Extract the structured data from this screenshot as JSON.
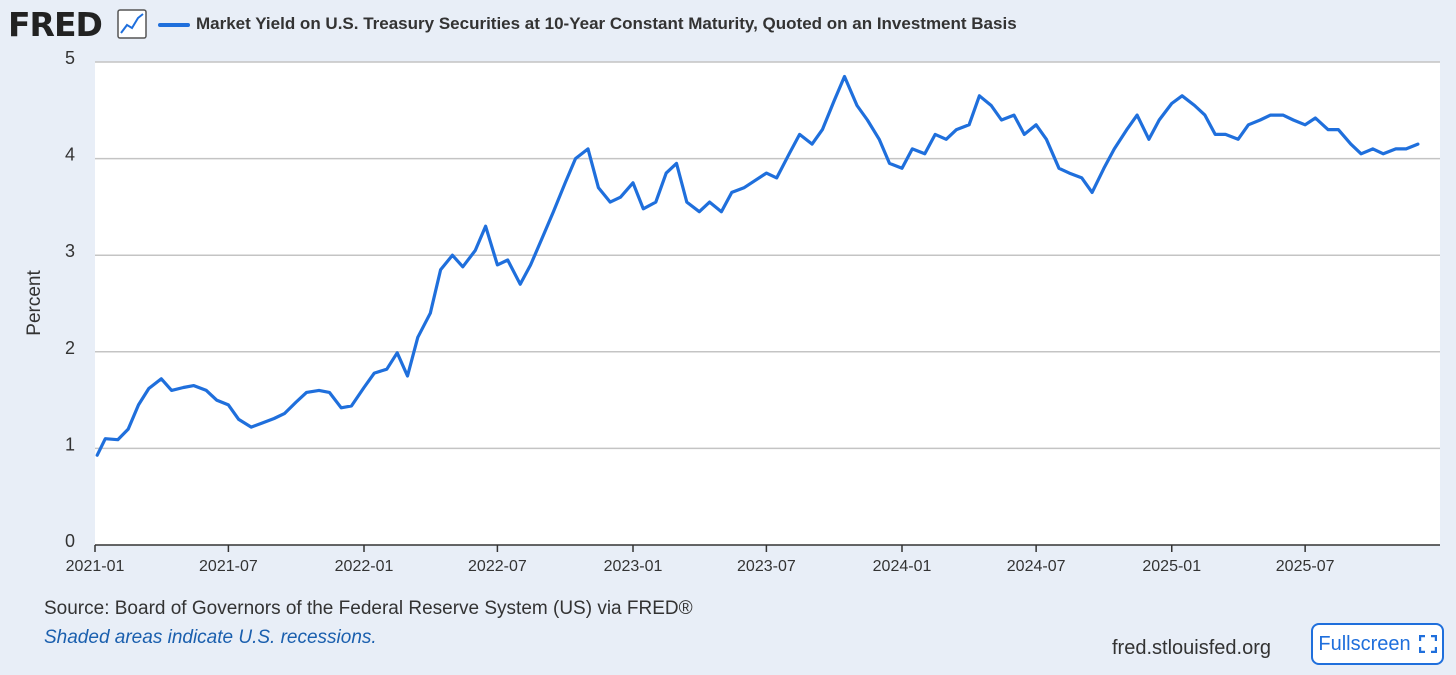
{
  "header": {
    "logo": "FRED",
    "logo_icon": "line-chart-icon",
    "title": "Market Yield on U.S. Treasury Securities at 10-Year Constant Maturity, Quoted on an Investment Basis"
  },
  "footer": {
    "source": "Source: Board of Governors of the Federal Reserve System (US) via FRED®",
    "note": "Shaded areas indicate U.S. recessions.",
    "site": "fred.stlouisfed.org",
    "fullscreen_label": "Fullscreen",
    "fullscreen_icon": "expand-icon"
  },
  "colors": {
    "series": "#1f6fdc",
    "background": "#e8eef7",
    "plot": "#ffffff",
    "grid": "#c4c4c4",
    "link": "#1a5fae"
  },
  "chart_data": {
    "type": "line",
    "title": "Market Yield on U.S. Treasury Securities at 10-Year Constant Maturity, Quoted on an Investment Basis",
    "xlabel": "",
    "ylabel": "Percent",
    "ylim": [
      0,
      5
    ],
    "yticks": [
      "0",
      "1",
      "2",
      "3",
      "4",
      "5"
    ],
    "xticks": [
      "2021-01",
      "2021-07",
      "2022-01",
      "2022-07",
      "2023-01",
      "2023-07",
      "2024-01",
      "2024-07",
      "2025-01",
      "2025-07"
    ],
    "grid": true,
    "series": [
      {
        "name": "Market Yield on U.S. Treasury Securities at 10-Year Constant Maturity, Quoted on an Investment Basis",
        "x": [
          "2021-01-04",
          "2021-01-15",
          "2021-02-01",
          "2021-02-15",
          "2021-03-01",
          "2021-03-15",
          "2021-04-01",
          "2021-04-15",
          "2021-05-01",
          "2021-05-15",
          "2021-06-01",
          "2021-06-15",
          "2021-07-01",
          "2021-07-15",
          "2021-08-01",
          "2021-08-15",
          "2021-09-01",
          "2021-09-15",
          "2021-10-01",
          "2021-10-15",
          "2021-11-01",
          "2021-11-15",
          "2021-12-01",
          "2021-12-15",
          "2022-01-01",
          "2022-01-15",
          "2022-02-01",
          "2022-02-15",
          "2022-03-01",
          "2022-03-15",
          "2022-04-01",
          "2022-04-15",
          "2022-05-01",
          "2022-05-15",
          "2022-06-01",
          "2022-06-15",
          "2022-07-01",
          "2022-07-15",
          "2022-08-01",
          "2022-08-15",
          "2022-09-01",
          "2022-09-15",
          "2022-10-01",
          "2022-10-15",
          "2022-11-01",
          "2022-11-15",
          "2022-12-01",
          "2022-12-15",
          "2023-01-01",
          "2023-01-15",
          "2023-02-01",
          "2023-02-15",
          "2023-03-01",
          "2023-03-15",
          "2023-04-01",
          "2023-04-15",
          "2023-05-01",
          "2023-05-15",
          "2023-06-01",
          "2023-06-15",
          "2023-07-01",
          "2023-07-15",
          "2023-08-01",
          "2023-08-15",
          "2023-09-01",
          "2023-09-15",
          "2023-10-01",
          "2023-10-15",
          "2023-11-01",
          "2023-11-15",
          "2023-12-01",
          "2023-12-15",
          "2024-01-01",
          "2024-01-15",
          "2024-02-01",
          "2024-02-15",
          "2024-03-01",
          "2024-03-15",
          "2024-04-01",
          "2024-04-15",
          "2024-05-01",
          "2024-05-15",
          "2024-06-01",
          "2024-06-15",
          "2024-07-01",
          "2024-07-15",
          "2024-08-01",
          "2024-08-15",
          "2024-09-01",
          "2024-09-15",
          "2024-10-01",
          "2024-10-15",
          "2024-11-01",
          "2024-11-15",
          "2024-12-01",
          "2024-12-15",
          "2025-01-01",
          "2025-01-15",
          "2025-02-01",
          "2025-02-15",
          "2025-03-01",
          "2025-03-15",
          "2025-04-01",
          "2025-04-15",
          "2025-05-01",
          "2025-05-15",
          "2025-06-01",
          "2025-06-15",
          "2025-07-01",
          "2025-07-15",
          "2025-08-01",
          "2025-08-15",
          "2025-09-01",
          "2025-09-15",
          "2025-10-01",
          "2025-10-15",
          "2025-11-01",
          "2025-11-15",
          "2025-12-01"
        ],
        "y": [
          0.93,
          1.1,
          1.09,
          1.2,
          1.45,
          1.62,
          1.72,
          1.6,
          1.63,
          1.65,
          1.6,
          1.5,
          1.45,
          1.3,
          1.22,
          1.26,
          1.31,
          1.36,
          1.48,
          1.58,
          1.6,
          1.58,
          1.42,
          1.44,
          1.63,
          1.78,
          1.82,
          1.99,
          1.75,
          2.15,
          2.4,
          2.85,
          3.0,
          2.88,
          3.05,
          3.3,
          2.9,
          2.95,
          2.7,
          2.9,
          3.2,
          3.45,
          3.75,
          4.0,
          4.1,
          3.7,
          3.55,
          3.6,
          3.75,
          3.48,
          3.55,
          3.85,
          3.95,
          3.55,
          3.45,
          3.55,
          3.45,
          3.65,
          3.7,
          3.77,
          3.85,
          3.8,
          4.05,
          4.25,
          4.15,
          4.3,
          4.6,
          4.85,
          4.55,
          4.4,
          4.2,
          3.95,
          3.9,
          4.1,
          4.05,
          4.25,
          4.2,
          4.3,
          4.35,
          4.65,
          4.55,
          4.4,
          4.45,
          4.25,
          4.35,
          4.2,
          3.9,
          3.85,
          3.8,
          3.65,
          3.9,
          4.1,
          4.3,
          4.45,
          4.2,
          4.4,
          4.57,
          4.65,
          4.55,
          4.45,
          4.25,
          4.25,
          4.2,
          4.35,
          4.4,
          4.45,
          4.45,
          4.4,
          4.35,
          4.42,
          4.3,
          4.3,
          4.15,
          4.05,
          4.1,
          4.05,
          4.1,
          4.1,
          4.15
        ]
      }
    ]
  }
}
